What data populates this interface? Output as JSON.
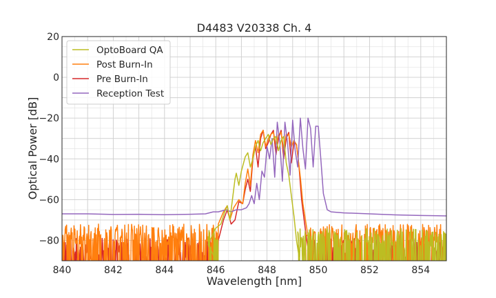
{
  "chart_data": {
    "type": "line",
    "title": "D4483 V20338 Ch. 4",
    "xlabel": "Wavelength [nm]",
    "ylabel": "Optical Power [dB]",
    "xlim": [
      840,
      855
    ],
    "ylim": [
      -90,
      20
    ],
    "x_ticks": [
      840,
      842,
      844,
      846,
      848,
      850,
      852,
      854
    ],
    "x_tick_labels": [
      "840",
      "842",
      "844",
      "846",
      "848",
      "850",
      "852",
      "854"
    ],
    "y_ticks": [
      20,
      0,
      -20,
      -40,
      -60,
      -80
    ],
    "y_tick_labels": [
      "20",
      "0",
      "−20",
      "−40",
      "−60",
      "−80"
    ],
    "grid": true,
    "legend_position": "top-left",
    "noise_floor_note": "noisy floor between about -90 and -70 dB outside the emission band",
    "series": [
      {
        "name": "OptoBoard QA",
        "color": "#bcbd22",
        "draw_order": 4,
        "noise_floor": {
          "x_start": 845.7,
          "x_end": 846.1,
          "x_resume": 849.2,
          "level": -79
        },
        "points": [
          [
            845.7,
            -82
          ],
          [
            846.0,
            -74
          ],
          [
            846.2,
            -72
          ],
          [
            846.35,
            -66
          ],
          [
            846.45,
            -63
          ],
          [
            846.55,
            -70
          ],
          [
            846.65,
            -60
          ],
          [
            846.75,
            -50
          ],
          [
            846.8,
            -47
          ],
          [
            846.9,
            -53
          ],
          [
            847.0,
            -46
          ],
          [
            847.15,
            -39
          ],
          [
            847.25,
            -37
          ],
          [
            847.35,
            -44
          ],
          [
            847.45,
            -40
          ],
          [
            847.55,
            -34
          ],
          [
            847.65,
            -31
          ],
          [
            847.75,
            -36
          ],
          [
            847.85,
            -32
          ],
          [
            847.95,
            -30
          ],
          [
            848.05,
            -28
          ],
          [
            848.15,
            -33
          ],
          [
            848.25,
            -30
          ],
          [
            848.35,
            -29
          ],
          [
            848.45,
            -36
          ],
          [
            848.55,
            -31
          ],
          [
            848.65,
            -29
          ],
          [
            848.75,
            -42
          ],
          [
            848.85,
            -48
          ],
          [
            848.95,
            -58
          ],
          [
            849.05,
            -68
          ],
          [
            849.15,
            -80
          ],
          [
            849.25,
            -88
          ]
        ]
      },
      {
        "name": "Post Burn-In",
        "color": "#ff7f0e",
        "draw_order": 2,
        "noise_floor": {
          "x_start": 840.0,
          "x_end": 846.1,
          "x_resume": 849.5,
          "level": -77
        },
        "points": [
          [
            846.1,
            -72
          ],
          [
            846.3,
            -66
          ],
          [
            846.45,
            -63
          ],
          [
            846.55,
            -70
          ],
          [
            846.7,
            -64
          ],
          [
            846.9,
            -60
          ],
          [
            847.05,
            -62
          ],
          [
            847.15,
            -52
          ],
          [
            847.25,
            -45
          ],
          [
            847.35,
            -53
          ],
          [
            847.45,
            -38
          ],
          [
            847.55,
            -31
          ],
          [
            847.65,
            -37
          ],
          [
            847.75,
            -28
          ],
          [
            847.85,
            -26
          ],
          [
            847.95,
            -34
          ],
          [
            848.05,
            -30
          ],
          [
            848.15,
            -28
          ],
          [
            848.25,
            -27
          ],
          [
            848.35,
            -33
          ],
          [
            848.45,
            -28
          ],
          [
            848.55,
            -27
          ],
          [
            848.65,
            -36
          ],
          [
            848.75,
            -28
          ],
          [
            848.85,
            -28
          ],
          [
            848.95,
            -34
          ],
          [
            849.05,
            -31
          ],
          [
            849.15,
            -33
          ],
          [
            849.3,
            -49
          ],
          [
            849.4,
            -62
          ],
          [
            849.5,
            -70
          ],
          [
            849.6,
            -78
          ]
        ]
      },
      {
        "name": "Pre Burn-In",
        "color": "#d62728",
        "draw_order": 1,
        "noise_floor": {
          "x_start": 840.0,
          "x_end": 846.1,
          "x_resume": 849.6,
          "level": -84
        },
        "points": [
          [
            846.1,
            -80
          ],
          [
            846.3,
            -70
          ],
          [
            846.45,
            -65
          ],
          [
            846.6,
            -72
          ],
          [
            846.75,
            -70
          ],
          [
            846.9,
            -61
          ],
          [
            847.05,
            -62
          ],
          [
            847.15,
            -55
          ],
          [
            847.25,
            -50
          ],
          [
            847.35,
            -56
          ],
          [
            847.45,
            -40
          ],
          [
            847.55,
            -34
          ],
          [
            847.65,
            -44
          ],
          [
            847.75,
            -30
          ],
          [
            847.85,
            -26
          ],
          [
            847.95,
            -35
          ],
          [
            848.05,
            -32
          ],
          [
            848.15,
            -28
          ],
          [
            848.25,
            -26
          ],
          [
            848.35,
            -38
          ],
          [
            848.45,
            -30
          ],
          [
            848.55,
            -26
          ],
          [
            848.65,
            -40
          ],
          [
            848.75,
            -30
          ],
          [
            848.85,
            -27
          ],
          [
            848.95,
            -42
          ],
          [
            849.05,
            -32
          ],
          [
            849.15,
            -33
          ],
          [
            849.25,
            -44
          ],
          [
            849.35,
            -60
          ],
          [
            849.45,
            -70
          ],
          [
            849.55,
            -80
          ],
          [
            849.65,
            -88
          ]
        ]
      },
      {
        "name": "Reception Test",
        "color": "#9467bd",
        "draw_order": 3,
        "points": [
          [
            840.0,
            -67
          ],
          [
            841.0,
            -67
          ],
          [
            842.0,
            -67.3
          ],
          [
            843.0,
            -67.2
          ],
          [
            844.0,
            -67.4
          ],
          [
            845.0,
            -67.2
          ],
          [
            845.6,
            -67
          ],
          [
            845.9,
            -66
          ],
          [
            846.1,
            -66
          ],
          [
            846.4,
            -65
          ],
          [
            846.6,
            -66
          ],
          [
            846.8,
            -65
          ],
          [
            847.0,
            -65
          ],
          [
            847.2,
            -64
          ],
          [
            847.3,
            -62
          ],
          [
            847.4,
            -58
          ],
          [
            847.5,
            -62
          ],
          [
            847.6,
            -52
          ],
          [
            847.7,
            -60
          ],
          [
            847.8,
            -46
          ],
          [
            847.9,
            -49
          ],
          [
            848.0,
            -34
          ],
          [
            848.1,
            -40
          ],
          [
            848.2,
            -30
          ],
          [
            848.3,
            -49
          ],
          [
            848.4,
            -22
          ],
          [
            848.5,
            -32
          ],
          [
            848.6,
            -51
          ],
          [
            848.7,
            -22
          ],
          [
            848.8,
            -32
          ],
          [
            848.9,
            -48
          ],
          [
            849.0,
            -21
          ],
          [
            849.1,
            -36
          ],
          [
            849.2,
            -44
          ],
          [
            849.3,
            -20
          ],
          [
            849.4,
            -35
          ],
          [
            849.5,
            -45
          ],
          [
            849.6,
            -20
          ],
          [
            849.7,
            -25
          ],
          [
            849.8,
            -44
          ],
          [
            849.9,
            -24
          ],
          [
            850.0,
            -24
          ],
          [
            850.1,
            -40
          ],
          [
            850.2,
            -57
          ],
          [
            850.35,
            -65
          ],
          [
            850.5,
            -66
          ],
          [
            851.0,
            -66.5
          ],
          [
            852.0,
            -67
          ],
          [
            853.0,
            -67.5
          ],
          [
            854.0,
            -67.8
          ],
          [
            855.0,
            -68
          ]
        ]
      }
    ]
  }
}
